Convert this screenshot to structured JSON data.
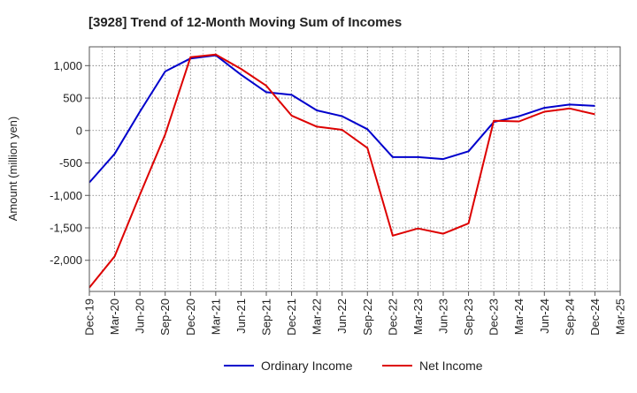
{
  "chart_data": {
    "type": "line",
    "title": "[3928]  Trend of 12-Month Moving Sum of Incomes",
    "ylabel": "Amount (million yen)",
    "xlabel": "",
    "categories": [
      "Dec-19",
      "Mar-20",
      "Jun-20",
      "Sep-20",
      "Dec-20",
      "Mar-21",
      "Jun-21",
      "Sep-21",
      "Dec-21",
      "Mar-22",
      "Jun-22",
      "Sep-22",
      "Dec-22",
      "Mar-23",
      "Jun-23",
      "Sep-23",
      "Dec-23",
      "Mar-24",
      "Jun-24",
      "Sep-24",
      "Dec-24",
      "Mar-25"
    ],
    "ylim": [
      -2480,
      1290
    ],
    "yticks": [
      1000,
      500,
      0,
      -500,
      -1000,
      -1500,
      -2000
    ],
    "ytick_labels": [
      "1,000",
      "500",
      "0",
      "-500",
      "-1,000",
      "-1,500",
      "-2,000"
    ],
    "grid": true,
    "legend_position": "bottom-center",
    "series": [
      {
        "name": "Ordinary Income",
        "color": "#0000cc",
        "values": [
          -800,
          -360,
          290,
          910,
          1110,
          1160,
          860,
          590,
          550,
          310,
          220,
          20,
          -410,
          -410,
          -440,
          -320,
          130,
          220,
          350,
          400,
          380,
          null
        ]
      },
      {
        "name": "Net Income",
        "color": "#dd0000",
        "values": [
          -2420,
          -1940,
          -990,
          -60,
          1130,
          1170,
          950,
          690,
          230,
          60,
          10,
          -270,
          -1620,
          -1510,
          -1590,
          -1430,
          150,
          140,
          290,
          340,
          250,
          null
        ]
      }
    ]
  }
}
